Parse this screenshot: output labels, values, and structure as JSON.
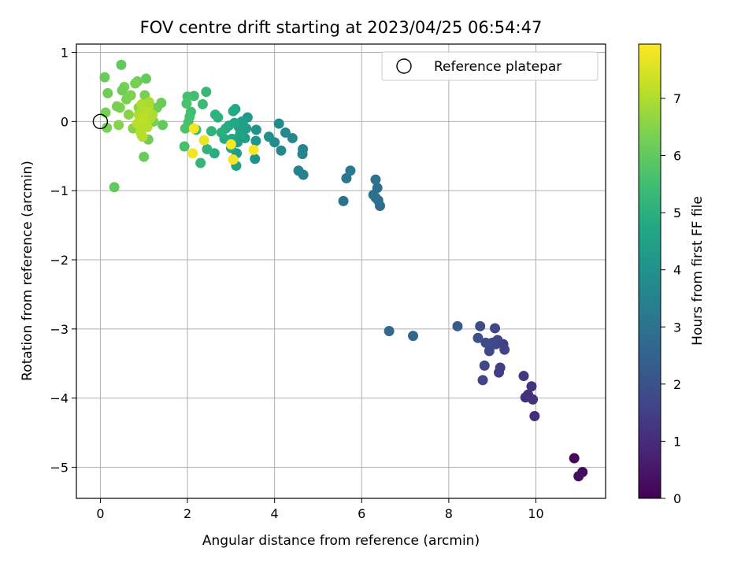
{
  "chart_data": {
    "type": "scatter",
    "title": "FOV centre drift starting at 2023/04/25 06:54:47",
    "xlabel": "Angular distance from reference (arcmin)",
    "ylabel": "Rotation from reference (arcmin)",
    "xlim": [
      -0.55,
      11.6
    ],
    "ylim": [
      -5.45,
      1.12
    ],
    "xticks": [
      0,
      2,
      4,
      6,
      8,
      10
    ],
    "yticks": [
      1,
      0,
      -1,
      -2,
      -3,
      -4,
      -5
    ],
    "xtick_labels": [
      "0",
      "2",
      "4",
      "6",
      "8",
      "10"
    ],
    "ytick_labels": [
      "1",
      "0",
      "−1",
      "−2",
      "−3",
      "−4",
      "−5"
    ],
    "grid": true,
    "legend": {
      "position": "top-right",
      "entries": [
        {
          "label": "Reference platepar",
          "marker": "open-circle"
        }
      ]
    },
    "reference_point": {
      "x": 0,
      "y": 0
    },
    "colorbar": {
      "label": "Hours from first FF file",
      "colormap": "viridis",
      "range": [
        0,
        7.95
      ],
      "ticks": [
        0,
        1,
        2,
        3,
        4,
        5,
        6,
        7
      ],
      "tick_labels": [
        "0",
        "1",
        "2",
        "3",
        "4",
        "5",
        "6",
        "7"
      ]
    },
    "points": [
      {
        "x": 10.88,
        "y": -4.87,
        "h": 0.1
      },
      {
        "x": 11.07,
        "y": -5.07,
        "h": 0.2
      },
      {
        "x": 10.98,
        "y": -5.13,
        "h": 0.3
      },
      {
        "x": 9.97,
        "y": -4.26,
        "h": 1.0
      },
      {
        "x": 9.93,
        "y": -4.02,
        "h": 1.1
      },
      {
        "x": 9.9,
        "y": -3.83,
        "h": 1.2
      },
      {
        "x": 9.82,
        "y": -3.95,
        "h": 1.15
      },
      {
        "x": 9.76,
        "y": -3.99,
        "h": 1.1
      },
      {
        "x": 9.72,
        "y": -3.68,
        "h": 1.3
      },
      {
        "x": 9.18,
        "y": -3.56,
        "h": 1.5
      },
      {
        "x": 9.15,
        "y": -3.63,
        "h": 1.45
      },
      {
        "x": 9.28,
        "y": -3.3,
        "h": 1.6
      },
      {
        "x": 9.25,
        "y": -3.22,
        "h": 1.55
      },
      {
        "x": 9.12,
        "y": -3.16,
        "h": 1.6
      },
      {
        "x": 9.06,
        "y": -2.99,
        "h": 1.7
      },
      {
        "x": 9.08,
        "y": -3.22,
        "h": 1.65
      },
      {
        "x": 9.0,
        "y": -3.2,
        "h": 1.7
      },
      {
        "x": 8.95,
        "y": -3.25,
        "h": 1.75
      },
      {
        "x": 8.93,
        "y": -3.32,
        "h": 1.7
      },
      {
        "x": 8.85,
        "y": -3.2,
        "h": 1.8
      },
      {
        "x": 8.82,
        "y": -3.53,
        "h": 1.7
      },
      {
        "x": 8.78,
        "y": -3.74,
        "h": 1.6
      },
      {
        "x": 8.72,
        "y": -2.96,
        "h": 1.9
      },
      {
        "x": 8.67,
        "y": -3.13,
        "h": 1.95
      },
      {
        "x": 8.2,
        "y": -2.96,
        "h": 2.2
      },
      {
        "x": 7.18,
        "y": -3.1,
        "h": 2.6
      },
      {
        "x": 6.63,
        "y": -3.03,
        "h": 2.7
      },
      {
        "x": 6.42,
        "y": -1.22,
        "h": 2.8
      },
      {
        "x": 6.38,
        "y": -1.14,
        "h": 2.85
      },
      {
        "x": 6.32,
        "y": -1.1,
        "h": 2.9
      },
      {
        "x": 6.27,
        "y": -1.06,
        "h": 2.95
      },
      {
        "x": 6.36,
        "y": -0.96,
        "h": 2.9
      },
      {
        "x": 6.32,
        "y": -0.84,
        "h": 3.0
      },
      {
        "x": 5.58,
        "y": -1.15,
        "h": 3.0
      },
      {
        "x": 5.65,
        "y": -0.82,
        "h": 3.1
      },
      {
        "x": 5.74,
        "y": -0.71,
        "h": 3.2
      },
      {
        "x": 4.66,
        "y": -0.77,
        "h": 3.4
      },
      {
        "x": 4.55,
        "y": -0.71,
        "h": 3.5
      },
      {
        "x": 4.64,
        "y": -0.47,
        "h": 3.55
      },
      {
        "x": 4.65,
        "y": -0.4,
        "h": 3.6
      },
      {
        "x": 4.41,
        "y": -0.24,
        "h": 3.7
      },
      {
        "x": 4.25,
        "y": -0.16,
        "h": 3.75
      },
      {
        "x": 4.1,
        "y": -0.03,
        "h": 3.8
      },
      {
        "x": 4.15,
        "y": -0.42,
        "h": 3.7
      },
      {
        "x": 4.0,
        "y": -0.3,
        "h": 3.8
      },
      {
        "x": 3.87,
        "y": -0.22,
        "h": 3.9
      },
      {
        "x": 3.58,
        "y": -0.12,
        "h": 4.0
      },
      {
        "x": 3.57,
        "y": -0.28,
        "h": 4.1
      },
      {
        "x": 3.55,
        "y": -0.54,
        "h": 4.0
      },
      {
        "x": 3.38,
        "y": 0.06,
        "h": 4.3
      },
      {
        "x": 3.35,
        "y": -0.1,
        "h": 4.35
      },
      {
        "x": 3.32,
        "y": -0.24,
        "h": 4.4
      },
      {
        "x": 3.28,
        "y": -0.05,
        "h": 4.45
      },
      {
        "x": 3.25,
        "y": 0.0,
        "h": 4.5
      },
      {
        "x": 3.22,
        "y": -0.15,
        "h": 4.55
      },
      {
        "x": 3.2,
        "y": -0.2,
        "h": 4.6
      },
      {
        "x": 3.18,
        "y": -0.08,
        "h": 4.5
      },
      {
        "x": 3.15,
        "y": -0.3,
        "h": 4.4
      },
      {
        "x": 3.13,
        "y": -0.46,
        "h": 4.3
      },
      {
        "x": 3.12,
        "y": -0.64,
        "h": 4.6
      },
      {
        "x": 3.1,
        "y": 0.18,
        "h": 4.7
      },
      {
        "x": 3.08,
        "y": -0.02,
        "h": 4.75
      },
      {
        "x": 3.05,
        "y": 0.15,
        "h": 4.8
      },
      {
        "x": 3.02,
        "y": -0.25,
        "h": 4.7
      },
      {
        "x": 3.0,
        "y": -0.38,
        "h": 4.75
      },
      {
        "x": 2.95,
        "y": -0.06,
        "h": 4.8
      },
      {
        "x": 2.88,
        "y": -0.1,
        "h": 4.9
      },
      {
        "x": 2.85,
        "y": -0.25,
        "h": 4.85
      },
      {
        "x": 2.78,
        "y": -0.16,
        "h": 5.0
      },
      {
        "x": 2.7,
        "y": 0.06,
        "h": 5.0
      },
      {
        "x": 2.64,
        "y": 0.1,
        "h": 5.1
      },
      {
        "x": 2.62,
        "y": -0.46,
        "h": 4.9
      },
      {
        "x": 2.55,
        "y": -0.14,
        "h": 5.15
      },
      {
        "x": 2.45,
        "y": -0.4,
        "h": 5.1
      },
      {
        "x": 2.43,
        "y": 0.43,
        "h": 5.3
      },
      {
        "x": 2.35,
        "y": 0.25,
        "h": 5.35
      },
      {
        "x": 2.3,
        "y": -0.6,
        "h": 5.2
      },
      {
        "x": 2.2,
        "y": -0.12,
        "h": 5.4
      },
      {
        "x": 2.15,
        "y": 0.37,
        "h": 5.5
      },
      {
        "x": 2.08,
        "y": 0.14,
        "h": 5.5
      },
      {
        "x": 2.05,
        "y": 0.07,
        "h": 5.55
      },
      {
        "x": 2.02,
        "y": -0.01,
        "h": 5.6
      },
      {
        "x": 2.0,
        "y": 0.36,
        "h": 5.6
      },
      {
        "x": 1.98,
        "y": 0.26,
        "h": 5.65
      },
      {
        "x": 1.95,
        "y": -0.1,
        "h": 5.7
      },
      {
        "x": 1.93,
        "y": -0.36,
        "h": 5.6
      },
      {
        "x": 2.15,
        "y": -0.1,
        "h": 7.85
      },
      {
        "x": 2.12,
        "y": -0.46,
        "h": 7.8
      },
      {
        "x": 2.38,
        "y": -0.27,
        "h": 7.7
      },
      {
        "x": 3.0,
        "y": -0.33,
        "h": 7.9
      },
      {
        "x": 3.05,
        "y": -0.55,
        "h": 7.85
      },
      {
        "x": 3.52,
        "y": -0.41,
        "h": 7.9
      },
      {
        "x": 1.43,
        "y": -0.05,
        "h": 6.0
      },
      {
        "x": 1.4,
        "y": 0.27,
        "h": 6.1
      },
      {
        "x": 1.3,
        "y": 0.2,
        "h": 6.2
      },
      {
        "x": 1.22,
        "y": 0.0,
        "h": 6.3
      },
      {
        "x": 1.1,
        "y": -0.26,
        "h": 6.2
      },
      {
        "x": 1.05,
        "y": 0.62,
        "h": 6.0
      },
      {
        "x": 1.02,
        "y": 0.38,
        "h": 6.3
      },
      {
        "x": 1.0,
        "y": -0.51,
        "h": 6.1
      },
      {
        "x": 0.95,
        "y": -0.2,
        "h": 6.6
      },
      {
        "x": 0.92,
        "y": 0.05,
        "h": 6.7
      },
      {
        "x": 0.88,
        "y": 0.2,
        "h": 6.6
      },
      {
        "x": 0.85,
        "y": 0.58,
        "h": 6.2
      },
      {
        "x": 0.8,
        "y": 0.55,
        "h": 6.3
      },
      {
        "x": 0.75,
        "y": -0.1,
        "h": 6.5
      },
      {
        "x": 0.7,
        "y": 0.38,
        "h": 6.4
      },
      {
        "x": 0.65,
        "y": 0.1,
        "h": 6.5
      },
      {
        "x": 0.6,
        "y": 0.32,
        "h": 6.35
      },
      {
        "x": 0.55,
        "y": 0.5,
        "h": 6.3
      },
      {
        "x": 0.5,
        "y": 0.45,
        "h": 6.2
      },
      {
        "x": 0.48,
        "y": 0.82,
        "h": 6.0
      },
      {
        "x": 0.45,
        "y": 0.2,
        "h": 6.4
      },
      {
        "x": 0.42,
        "y": -0.05,
        "h": 6.5
      },
      {
        "x": 0.38,
        "y": 0.22,
        "h": 6.3
      },
      {
        "x": 0.32,
        "y": -0.95,
        "h": 6.0
      },
      {
        "x": 0.17,
        "y": 0.41,
        "h": 6.2
      },
      {
        "x": 0.15,
        "y": -0.09,
        "h": 6.3
      },
      {
        "x": 0.12,
        "y": 0.13,
        "h": 6.3
      },
      {
        "x": 0.1,
        "y": 0.64,
        "h": 6.1
      },
      {
        "x": 1.2,
        "y": 0.1,
        "h": 6.95
      },
      {
        "x": 1.15,
        "y": 0.05,
        "h": 7.0
      },
      {
        "x": 1.1,
        "y": 0.2,
        "h": 7.05
      },
      {
        "x": 1.05,
        "y": -0.05,
        "h": 7.0
      },
      {
        "x": 1.0,
        "y": 0.15,
        "h": 7.1
      },
      {
        "x": 0.97,
        "y": -0.22,
        "h": 7.1
      },
      {
        "x": 0.95,
        "y": 0.25,
        "h": 7.0
      },
      {
        "x": 0.92,
        "y": -0.15,
        "h": 7.05
      },
      {
        "x": 0.9,
        "y": 0.0,
        "h": 7.1
      },
      {
        "x": 0.88,
        "y": 0.1,
        "h": 7.0
      },
      {
        "x": 0.85,
        "y": -0.03,
        "h": 7.1
      },
      {
        "x": 1.08,
        "y": -0.08,
        "h": 7.05
      },
      {
        "x": 1.12,
        "y": 0.28,
        "h": 6.9
      },
      {
        "x": 0.98,
        "y": 0.05,
        "h": 7.15
      }
    ]
  }
}
